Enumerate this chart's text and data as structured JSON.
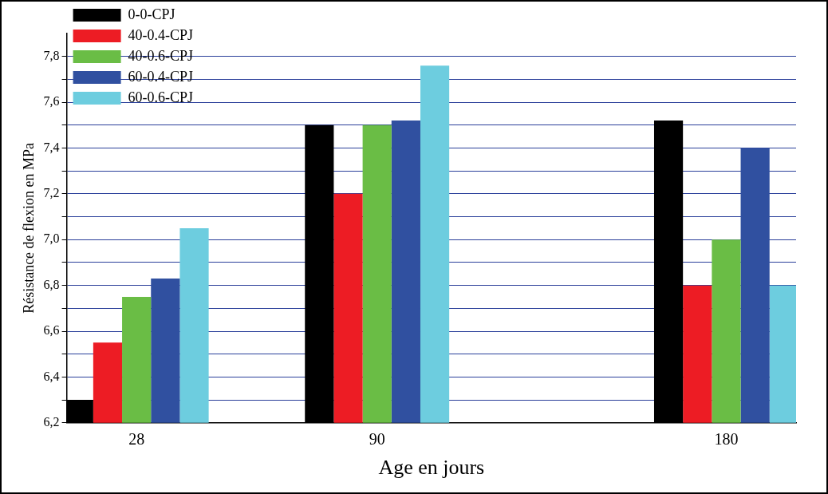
{
  "chart_data": {
    "type": "bar",
    "xlabel": "Age en jours",
    "ylabel": "Résistance de flexion en MPa",
    "x": [
      28,
      90,
      180
    ],
    "xlim": [
      10,
      198
    ],
    "xticks": [
      28,
      90,
      180
    ],
    "ylim": [
      6.2,
      7.9
    ],
    "yticks": [
      {
        "value": 6.2,
        "label": "6,2"
      },
      {
        "value": 6.3,
        "label": null
      },
      {
        "value": 6.4,
        "label": "6,4"
      },
      {
        "value": 6.5,
        "label": null
      },
      {
        "value": 6.6,
        "label": "6,6"
      },
      {
        "value": 6.7,
        "label": null
      },
      {
        "value": 6.8,
        "label": "6,8"
      },
      {
        "value": 6.9,
        "label": null
      },
      {
        "value": 7.0,
        "label": "7,0"
      },
      {
        "value": 7.1,
        "label": null
      },
      {
        "value": 7.2,
        "label": "7,2"
      },
      {
        "value": 7.3,
        "label": null
      },
      {
        "value": 7.4,
        "label": "7,4"
      },
      {
        "value": 7.5,
        "label": null
      },
      {
        "value": 7.6,
        "label": "7,6"
      },
      {
        "value": 7.7,
        "label": null
      },
      {
        "value": 7.8,
        "label": "7,8"
      }
    ],
    "grid": "y",
    "legend": "top",
    "series": [
      {
        "name": "0-0-CPJ",
        "color": "#000000",
        "values": [
          6.3,
          7.5,
          7.52
        ]
      },
      {
        "name": "40-0.4-CPJ",
        "color": "#ed1c24",
        "values": [
          6.55,
          7.2,
          6.8
        ]
      },
      {
        "name": "40-0.6-CPJ",
        "color": "#6abd45",
        "values": [
          6.75,
          7.5,
          7.0
        ]
      },
      {
        "name": "60-0.4-CPJ",
        "color": "#3050a0",
        "values": [
          6.83,
          7.52,
          7.4
        ]
      },
      {
        "name": "60-0.6-CPJ",
        "color": "#6dcddf",
        "values": [
          7.05,
          7.76,
          6.8
        ]
      }
    ]
  }
}
